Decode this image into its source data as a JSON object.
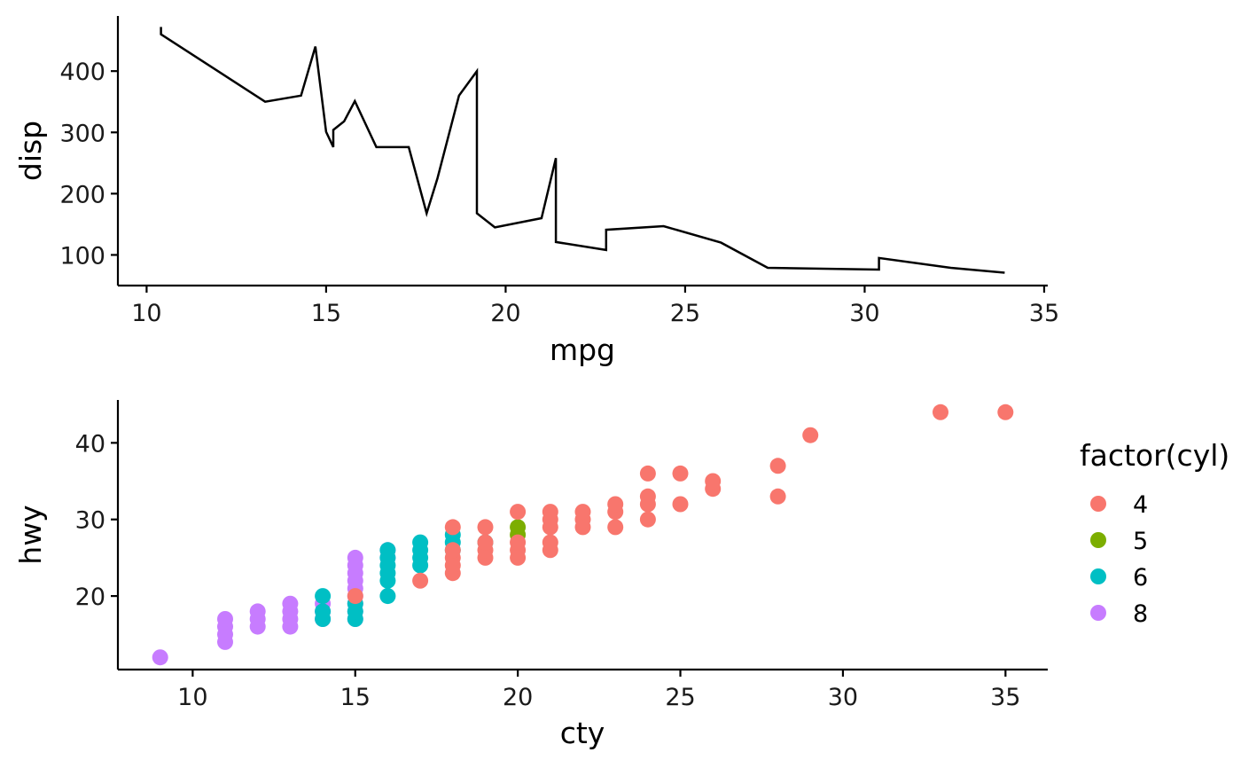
{
  "chart_data": [
    {
      "type": "line",
      "xlabel": "mpg",
      "ylabel": "disp",
      "xlim": [
        9.2,
        35.1
      ],
      "ylim": [
        50,
        490
      ],
      "xticks": [
        10,
        15,
        20,
        25,
        30,
        35
      ],
      "yticks": [
        100,
        200,
        300,
        400
      ],
      "grid": false,
      "series": [
        {
          "x": [
            10.4,
            10.4,
            13.3,
            14.3,
            14.7,
            15.0,
            15.2,
            15.2,
            15.5,
            15.8,
            16.4,
            17.3,
            17.8,
            18.1,
            18.7,
            19.2,
            19.2,
            19.7,
            21.0,
            21.4,
            21.4,
            22.8,
            22.8,
            24.4,
            26.0,
            27.3,
            30.4,
            30.4,
            32.4,
            33.9
          ],
          "y": [
            472,
            460,
            350,
            360,
            440,
            301,
            276,
            304,
            318,
            351,
            276,
            276,
            168,
            225,
            360,
            400,
            168,
            145,
            160,
            258,
            121,
            108,
            141,
            147,
            120,
            79,
            76,
            95,
            79,
            71
          ]
        }
      ]
    },
    {
      "type": "scatter",
      "xlabel": "cty",
      "ylabel": "hwy",
      "xlim": [
        7.7,
        36.3
      ],
      "ylim": [
        10.4,
        45.6
      ],
      "xticks": [
        10,
        15,
        20,
        25,
        30,
        35
      ],
      "yticks": [
        20,
        30,
        40
      ],
      "grid": false,
      "legend": {
        "title": "factor(cyl)",
        "placement": "right",
        "items": [
          {
            "label": "4",
            "color": "#F8766D"
          },
          {
            "label": "5",
            "color": "#7CAE00"
          },
          {
            "label": "6",
            "color": "#00BFC4"
          },
          {
            "label": "8",
            "color": "#C77CFF"
          }
        ]
      },
      "series": [
        {
          "name": "8",
          "color": "#C77CFF",
          "points": [
            [
              9,
              12
            ],
            [
              11,
              14
            ],
            [
              11,
              15
            ],
            [
              11,
              16
            ],
            [
              11,
              17
            ],
            [
              12,
              16
            ],
            [
              12,
              17
            ],
            [
              12,
              18
            ],
            [
              13,
              16
            ],
            [
              13,
              17
            ],
            [
              13,
              18
            ],
            [
              13,
              19
            ],
            [
              14,
              17
            ],
            [
              14,
              18
            ],
            [
              14,
              19
            ],
            [
              15,
              17
            ],
            [
              15,
              18
            ],
            [
              15,
              19
            ],
            [
              15,
              20
            ],
            [
              15,
              21
            ],
            [
              15,
              22
            ],
            [
              15,
              23
            ],
            [
              15,
              24
            ],
            [
              15,
              25
            ],
            [
              16,
              25
            ],
            [
              16,
              26
            ]
          ]
        },
        {
          "name": "6",
          "color": "#00BFC4",
          "points": [
            [
              14,
              17
            ],
            [
              14,
              18
            ],
            [
              14,
              20
            ],
            [
              15,
              17
            ],
            [
              15,
              18
            ],
            [
              15,
              19
            ],
            [
              16,
              20
            ],
            [
              16,
              22
            ],
            [
              16,
              23
            ],
            [
              16,
              24
            ],
            [
              16,
              25
            ],
            [
              16,
              26
            ],
            [
              17,
              24
            ],
            [
              17,
              25
            ],
            [
              17,
              26
            ],
            [
              17,
              27
            ],
            [
              18,
              26
            ],
            [
              18,
              27
            ],
            [
              18,
              28
            ],
            [
              19,
              27
            ]
          ]
        },
        {
          "name": "5",
          "color": "#7CAE00",
          "points": [
            [
              20,
              28
            ],
            [
              20,
              29
            ]
          ]
        },
        {
          "name": "4",
          "color": "#F8766D",
          "points": [
            [
              15,
              20
            ],
            [
              17,
              22
            ],
            [
              18,
              23
            ],
            [
              18,
              24
            ],
            [
              18,
              25
            ],
            [
              18,
              26
            ],
            [
              18,
              29
            ],
            [
              19,
              25
            ],
            [
              19,
              26
            ],
            [
              19,
              27
            ],
            [
              19,
              29
            ],
            [
              20,
              25
            ],
            [
              20,
              26
            ],
            [
              20,
              27
            ],
            [
              20,
              31
            ],
            [
              21,
              26
            ],
            [
              21,
              27
            ],
            [
              21,
              29
            ],
            [
              21,
              30
            ],
            [
              21,
              31
            ],
            [
              22,
              29
            ],
            [
              22,
              30
            ],
            [
              22,
              31
            ],
            [
              23,
              29
            ],
            [
              23,
              31
            ],
            [
              23,
              32
            ],
            [
              24,
              30
            ],
            [
              24,
              32
            ],
            [
              24,
              33
            ],
            [
              24,
              36
            ],
            [
              25,
              32
            ],
            [
              25,
              36
            ],
            [
              26,
              34
            ],
            [
              26,
              35
            ],
            [
              28,
              33
            ],
            [
              28,
              37
            ],
            [
              29,
              41
            ],
            [
              33,
              44
            ],
            [
              35,
              44
            ]
          ]
        }
      ]
    }
  ]
}
